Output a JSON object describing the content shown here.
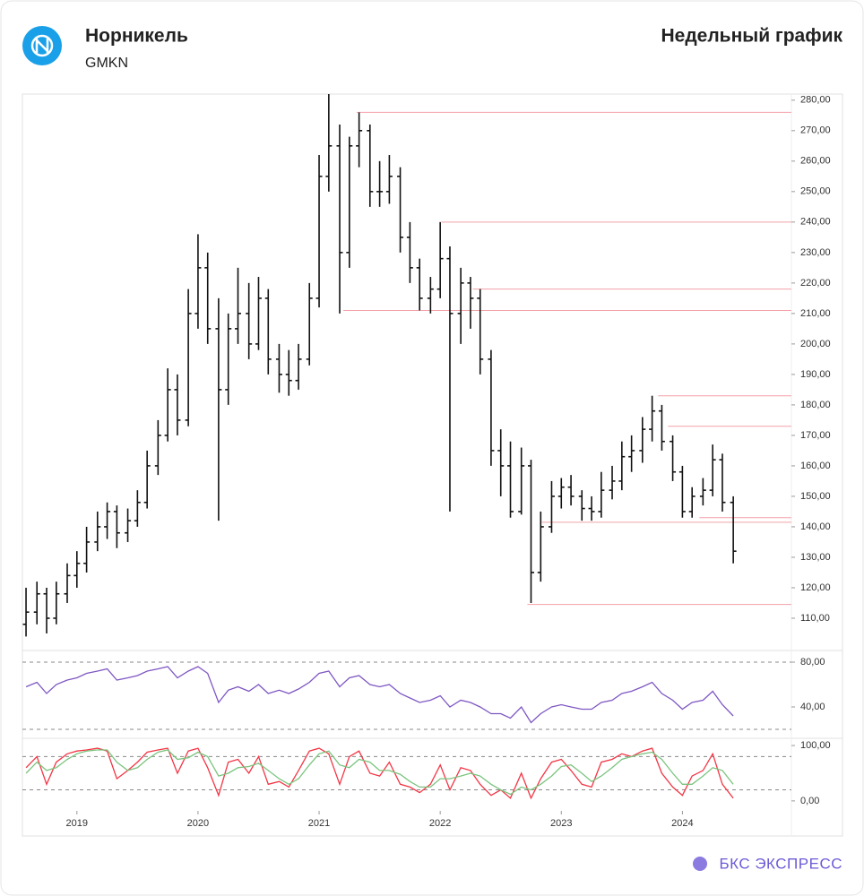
{
  "header": {
    "name": "Норникель",
    "ticker": "GMKN",
    "period": "Недельный график"
  },
  "footer": {
    "brand": "БКС ЭКСПРЕСС"
  },
  "chart_data": [
    {
      "type": "ohlc",
      "x": [
        2018.58,
        2018.67,
        2018.75,
        2018.83,
        2018.92,
        2019.0,
        2019.08,
        2019.17,
        2019.25,
        2019.33,
        2019.42,
        2019.5,
        2019.58,
        2019.67,
        2019.75,
        2019.83,
        2019.92,
        2020.0,
        2020.08,
        2020.17,
        2020.25,
        2020.33,
        2020.42,
        2020.5,
        2020.58,
        2020.67,
        2020.75,
        2020.83,
        2020.92,
        2021.0,
        2021.08,
        2021.17,
        2021.25,
        2021.33,
        2021.42,
        2021.5,
        2021.58,
        2021.67,
        2021.75,
        2021.83,
        2021.92,
        2022.0,
        2022.08,
        2022.17,
        2022.25,
        2022.33,
        2022.42,
        2022.5,
        2022.58,
        2022.67,
        2022.75,
        2022.83,
        2022.92,
        2023.0,
        2023.08,
        2023.17,
        2023.25,
        2023.33,
        2023.42,
        2023.5,
        2023.58,
        2023.67,
        2023.75,
        2023.83,
        2023.92,
        2024.0,
        2024.08,
        2024.17,
        2024.25,
        2024.33,
        2024.42
      ],
      "open": [
        108,
        112,
        118,
        110,
        118,
        124,
        128,
        135,
        140,
        145,
        138,
        142,
        148,
        160,
        170,
        185,
        175,
        210,
        225,
        205,
        185,
        205,
        210,
        200,
        215,
        195,
        190,
        188,
        195,
        215,
        255,
        265,
        230,
        265,
        270,
        250,
        250,
        255,
        235,
        225,
        215,
        218,
        228,
        210,
        220,
        215,
        195,
        165,
        160,
        145,
        160,
        125,
        140,
        150,
        153,
        150,
        146,
        145,
        152,
        155,
        163,
        165,
        172,
        178,
        168,
        158,
        145,
        150,
        152,
        162,
        148
      ],
      "high": [
        120,
        122,
        120,
        122,
        128,
        132,
        140,
        145,
        148,
        147,
        146,
        152,
        165,
        175,
        192,
        190,
        218,
        236,
        230,
        215,
        210,
        225,
        220,
        222,
        218,
        200,
        198,
        200,
        220,
        262,
        282,
        272,
        268,
        276,
        272,
        260,
        262,
        258,
        240,
        228,
        222,
        240,
        232,
        225,
        222,
        218,
        198,
        172,
        168,
        166,
        162,
        145,
        155,
        156,
        157,
        152,
        150,
        158,
        160,
        168,
        170,
        176,
        183,
        180,
        170,
        160,
        153,
        156,
        167,
        164,
        150
      ],
      "low": [
        104,
        108,
        105,
        108,
        115,
        120,
        125,
        132,
        136,
        133,
        135,
        140,
        146,
        157,
        168,
        170,
        173,
        205,
        200,
        142,
        180,
        200,
        195,
        198,
        190,
        184,
        183,
        185,
        193,
        212,
        250,
        210,
        225,
        258,
        245,
        245,
        246,
        230,
        220,
        211,
        210,
        215,
        145,
        200,
        205,
        190,
        160,
        150,
        143,
        144,
        115,
        122,
        138,
        146,
        147,
        142,
        142,
        143,
        149,
        152,
        158,
        161,
        168,
        165,
        155,
        143,
        143,
        147,
        150,
        145,
        128
      ],
      "close": [
        112,
        118,
        110,
        118,
        124,
        128,
        135,
        140,
        145,
        138,
        142,
        148,
        160,
        170,
        185,
        175,
        210,
        225,
        205,
        185,
        205,
        210,
        200,
        215,
        195,
        190,
        188,
        195,
        215,
        255,
        265,
        230,
        265,
        270,
        250,
        250,
        255,
        235,
        225,
        215,
        218,
        228,
        210,
        220,
        215,
        195,
        165,
        160,
        145,
        160,
        125,
        140,
        150,
        153,
        150,
        146,
        145,
        152,
        155,
        163,
        165,
        172,
        178,
        168,
        158,
        145,
        150,
        152,
        162,
        148,
        132
      ],
      "color": "#111111",
      "xlim": [
        2018.55,
        2024.9
      ],
      "ylim": [
        99.7,
        282
      ],
      "yticks": [
        {
          "value": 110,
          "label": "110,00"
        },
        {
          "value": 120,
          "label": "120,00"
        },
        {
          "value": 130,
          "label": "130,00"
        },
        {
          "value": 140,
          "label": "140,00"
        },
        {
          "value": 150,
          "label": "150,00"
        },
        {
          "value": 160,
          "label": "160,00"
        },
        {
          "value": 170,
          "label": "170,00"
        },
        {
          "value": 180,
          "label": "180,00"
        },
        {
          "value": 190,
          "label": "190,00"
        },
        {
          "value": 200,
          "label": "200,00"
        },
        {
          "value": 210,
          "label": "210,00"
        },
        {
          "value": 220,
          "label": "220,00"
        },
        {
          "value": 230,
          "label": "230,00"
        },
        {
          "value": 240,
          "label": "240,00"
        },
        {
          "value": 250,
          "label": "250,00"
        },
        {
          "value": 260,
          "label": "260,00"
        },
        {
          "value": 270,
          "label": "270,00"
        },
        {
          "value": 280,
          "label": "280,00"
        }
      ],
      "levels": [
        {
          "value": 276,
          "start": 2021.31
        },
        {
          "value": 240,
          "start": 2022.01
        },
        {
          "value": 218,
          "start": 2022.27
        },
        {
          "value": 211,
          "start": 2021.2
        },
        {
          "value": 183,
          "start": 2023.8
        },
        {
          "value": 173,
          "start": 2023.88
        },
        {
          "value": 143,
          "start": 2024.14
        },
        {
          "value": 141.5,
          "start": 2022.84
        },
        {
          "value": 114.5,
          "start": 2022.72
        }
      ],
      "level_color": "#f3a0a8"
    },
    {
      "type": "line",
      "series": [
        {
          "color": "#7e57c2",
          "values": [
            58,
            62,
            52,
            60,
            64,
            66,
            70,
            72,
            74,
            64,
            66,
            68,
            72,
            74,
            76,
            66,
            72,
            76,
            70,
            44,
            55,
            58,
            54,
            60,
            52,
            55,
            52,
            56,
            62,
            70,
            72,
            58,
            66,
            68,
            60,
            58,
            60,
            52,
            48,
            44,
            46,
            50,
            40,
            46,
            44,
            40,
            34,
            34,
            30,
            40,
            26,
            34,
            40,
            42,
            40,
            38,
            38,
            44,
            46,
            52,
            54,
            58,
            62,
            52,
            46,
            38,
            44,
            46,
            54,
            42,
            32
          ]
        }
      ],
      "ylim": [
        12.8,
        89.6
      ],
      "yticks": [
        {
          "value": 40,
          "label": "40,00"
        },
        {
          "value": 80,
          "label": "80,00"
        }
      ],
      "levels": [
        20,
        80
      ]
    },
    {
      "type": "line",
      "series": [
        {
          "color": "#f23645",
          "values": [
            60,
            80,
            30,
            70,
            85,
            90,
            92,
            95,
            90,
            40,
            55,
            70,
            88,
            92,
            95,
            50,
            90,
            95,
            60,
            10,
            70,
            75,
            50,
            80,
            30,
            35,
            25,
            55,
            90,
            95,
            85,
            30,
            80,
            90,
            50,
            45,
            70,
            30,
            25,
            15,
            30,
            65,
            20,
            60,
            55,
            30,
            10,
            20,
            5,
            50,
            5,
            40,
            70,
            75,
            55,
            30,
            25,
            70,
            75,
            85,
            80,
            90,
            95,
            50,
            25,
            10,
            45,
            55,
            85,
            30,
            5
          ]
        },
        {
          "color": "#7cc47f",
          "values": [
            50,
            70,
            55,
            60,
            75,
            85,
            90,
            92,
            92,
            70,
            55,
            60,
            75,
            88,
            92,
            75,
            78,
            88,
            80,
            45,
            50,
            60,
            62,
            68,
            55,
            40,
            30,
            40,
            65,
            85,
            90,
            65,
            60,
            75,
            70,
            55,
            55,
            48,
            35,
            25,
            25,
            40,
            40,
            45,
            50,
            45,
            30,
            20,
            12,
            25,
            20,
            30,
            45,
            62,
            65,
            50,
            35,
            45,
            60,
            75,
            80,
            85,
            88,
            75,
            50,
            30,
            30,
            45,
            60,
            55,
            30
          ]
        }
      ],
      "ylim": [
        -18,
        109.8
      ],
      "yticks": [
        {
          "value": 0,
          "label": "0,00"
        },
        {
          "value": 100,
          "label": "100,00"
        }
      ],
      "levels": [
        20,
        80
      ],
      "xticks": [
        2019,
        2020,
        2021,
        2022,
        2023,
        2024
      ]
    }
  ]
}
